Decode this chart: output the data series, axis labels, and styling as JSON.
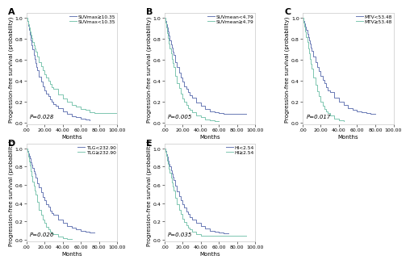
{
  "panels": [
    {
      "label": "A",
      "pvalue": "P=0.028",
      "legend": [
        "SUVmax≥10.35",
        "SUVmax<10.35"
      ],
      "colors": [
        "#6a7ab5",
        "#7dc6b0"
      ],
      "xlabel": "Months",
      "ylabel": "Progression-free survival (probability)",
      "xlim": [
        0,
        100
      ],
      "ylim": [
        -0.02,
        1.05
      ],
      "xticks": [
        0,
        20,
        40,
        60,
        80,
        100
      ],
      "xtick_labels": [
        ".00",
        "20.00",
        "40.00",
        "60.00",
        "80.00",
        "100.00"
      ],
      "yticks": [
        0.0,
        0.2,
        0.4,
        0.6,
        0.8,
        1.0
      ],
      "ytick_labels": [
        "0.0",
        "0.2",
        "0.4",
        "0.6",
        "0.8",
        "1.0"
      ],
      "curve1_x": [
        0,
        1,
        2,
        3,
        4,
        5,
        6,
        7,
        8,
        9,
        10,
        11,
        12,
        14,
        16,
        18,
        20,
        22,
        24,
        26,
        28,
        30,
        32,
        35,
        40,
        45,
        50,
        55,
        60,
        65,
        70
      ],
      "curve1_y": [
        1.0,
        0.97,
        0.93,
        0.89,
        0.84,
        0.79,
        0.74,
        0.7,
        0.65,
        0.61,
        0.57,
        0.53,
        0.5,
        0.44,
        0.39,
        0.35,
        0.31,
        0.28,
        0.25,
        0.22,
        0.2,
        0.18,
        0.16,
        0.14,
        0.11,
        0.08,
        0.06,
        0.05,
        0.04,
        0.03,
        0.02
      ],
      "curve2_x": [
        0,
        1,
        2,
        3,
        4,
        5,
        6,
        7,
        8,
        9,
        10,
        12,
        14,
        16,
        18,
        20,
        22,
        24,
        26,
        28,
        30,
        35,
        40,
        45,
        50,
        55,
        60,
        65,
        70,
        75,
        80,
        85,
        90,
        95,
        100
      ],
      "curve2_y": [
        1.0,
        0.97,
        0.94,
        0.91,
        0.87,
        0.84,
        0.81,
        0.77,
        0.74,
        0.71,
        0.68,
        0.63,
        0.58,
        0.54,
        0.5,
        0.46,
        0.43,
        0.4,
        0.37,
        0.34,
        0.32,
        0.27,
        0.23,
        0.2,
        0.17,
        0.15,
        0.13,
        0.12,
        0.1,
        0.09,
        0.09,
        0.09,
        0.09,
        0.09,
        0.09
      ]
    },
    {
      "label": "B",
      "pvalue": "P=0.005",
      "legend": [
        "SUVmean<4.79",
        "SUVmean≥4.79"
      ],
      "colors": [
        "#6a7ab5",
        "#7dc6b0"
      ],
      "xlabel": "Months",
      "ylabel": "Progression-free survival (probability)",
      "xlim": [
        0,
        100
      ],
      "ylim": [
        -0.02,
        1.05
      ],
      "xticks": [
        0,
        20,
        40,
        60,
        80,
        100
      ],
      "xtick_labels": [
        ".00",
        "20.00",
        "40.00",
        "60.00",
        "80.00",
        "100.00"
      ],
      "yticks": [
        0.0,
        0.2,
        0.4,
        0.6,
        0.8,
        1.0
      ],
      "ytick_labels": [
        "0.0",
        "0.2",
        "0.4",
        "0.6",
        "0.8",
        "1.0"
      ],
      "curve1_x": [
        0,
        1,
        2,
        3,
        4,
        5,
        6,
        7,
        8,
        9,
        10,
        12,
        14,
        16,
        18,
        20,
        22,
        24,
        26,
        28,
        30,
        35,
        40,
        45,
        50,
        55,
        60,
        65,
        70,
        75,
        80,
        85,
        90
      ],
      "curve1_y": [
        1.0,
        0.97,
        0.94,
        0.91,
        0.87,
        0.83,
        0.79,
        0.75,
        0.72,
        0.68,
        0.65,
        0.58,
        0.53,
        0.48,
        0.43,
        0.39,
        0.35,
        0.32,
        0.29,
        0.26,
        0.24,
        0.19,
        0.16,
        0.13,
        0.11,
        0.1,
        0.09,
        0.08,
        0.08,
        0.08,
        0.08,
        0.08,
        0.08
      ],
      "curve2_x": [
        0,
        1,
        2,
        3,
        4,
        5,
        6,
        7,
        8,
        9,
        10,
        12,
        14,
        16,
        18,
        20,
        22,
        24,
        26,
        28,
        30,
        35,
        40,
        45,
        50,
        55,
        60
      ],
      "curve2_y": [
        1.0,
        0.96,
        0.91,
        0.86,
        0.81,
        0.76,
        0.71,
        0.66,
        0.61,
        0.57,
        0.53,
        0.45,
        0.38,
        0.33,
        0.28,
        0.23,
        0.2,
        0.17,
        0.14,
        0.12,
        0.1,
        0.07,
        0.05,
        0.03,
        0.02,
        0.015,
        0.01
      ]
    },
    {
      "label": "C",
      "pvalue": "P=0.017",
      "legend": [
        "MTV<53.48",
        "MTV≥53.48"
      ],
      "colors": [
        "#6a7ab5",
        "#7dc6b0"
      ],
      "xlabel": "Months",
      "ylabel": "Progression-free survival (probability)",
      "xlim": [
        0,
        100
      ],
      "ylim": [
        -0.02,
        1.05
      ],
      "xticks": [
        0,
        20,
        40,
        60,
        80,
        100
      ],
      "xtick_labels": [
        ".00",
        "20.00",
        "40.00",
        "60.00",
        "80.00",
        "100.00"
      ],
      "yticks": [
        0.0,
        0.2,
        0.4,
        0.6,
        0.8,
        1.0
      ],
      "ytick_labels": [
        "0.0",
        "0.2",
        "0.4",
        "0.6",
        "0.8",
        "1.0"
      ],
      "curve1_x": [
        0,
        1,
        2,
        3,
        4,
        5,
        6,
        7,
        8,
        9,
        10,
        12,
        14,
        16,
        18,
        20,
        22,
        24,
        26,
        28,
        30,
        35,
        40,
        45,
        50,
        55,
        60,
        65,
        70,
        75,
        80
      ],
      "curve1_y": [
        1.0,
        0.97,
        0.95,
        0.92,
        0.89,
        0.85,
        0.82,
        0.79,
        0.76,
        0.72,
        0.69,
        0.63,
        0.58,
        0.53,
        0.49,
        0.45,
        0.41,
        0.38,
        0.34,
        0.31,
        0.29,
        0.24,
        0.2,
        0.17,
        0.14,
        0.12,
        0.11,
        0.1,
        0.09,
        0.08,
        0.08
      ],
      "curve2_x": [
        0,
        1,
        2,
        3,
        4,
        5,
        6,
        7,
        8,
        9,
        10,
        12,
        14,
        16,
        18,
        20,
        22,
        24,
        26,
        28,
        30,
        35,
        40,
        45
      ],
      "curve2_y": [
        1.0,
        0.96,
        0.92,
        0.87,
        0.82,
        0.77,
        0.71,
        0.66,
        0.61,
        0.56,
        0.52,
        0.43,
        0.36,
        0.3,
        0.25,
        0.2,
        0.16,
        0.13,
        0.11,
        0.09,
        0.07,
        0.04,
        0.02,
        0.01
      ]
    },
    {
      "label": "D",
      "pvalue": "P=0.026",
      "legend": [
        "TLG<232.90",
        "TLG≥232.90"
      ],
      "colors": [
        "#6a7ab5",
        "#7dc6b0"
      ],
      "xlabel": "Months",
      "ylabel": "Progression-free survival (probability)",
      "xlim": [
        0,
        100
      ],
      "ylim": [
        -0.02,
        1.05
      ],
      "xticks": [
        0,
        20,
        40,
        60,
        80,
        100
      ],
      "xtick_labels": [
        ".00",
        "20.00",
        "40.00",
        "60.00",
        "80.00",
        "100.00"
      ],
      "yticks": [
        0.0,
        0.2,
        0.4,
        0.6,
        0.8,
        1.0
      ],
      "ytick_labels": [
        "0.0",
        "0.2",
        "0.4",
        "0.6",
        "0.8",
        "1.0"
      ],
      "curve1_x": [
        0,
        1,
        2,
        3,
        4,
        5,
        6,
        7,
        8,
        9,
        10,
        12,
        14,
        16,
        18,
        20,
        22,
        24,
        26,
        28,
        30,
        35,
        40,
        45,
        50,
        55,
        60,
        65,
        70,
        75
      ],
      "curve1_y": [
        1.0,
        0.97,
        0.95,
        0.92,
        0.89,
        0.85,
        0.82,
        0.79,
        0.75,
        0.72,
        0.68,
        0.62,
        0.57,
        0.52,
        0.47,
        0.43,
        0.39,
        0.36,
        0.32,
        0.29,
        0.27,
        0.22,
        0.18,
        0.15,
        0.13,
        0.11,
        0.1,
        0.09,
        0.08,
        0.08
      ],
      "curve2_x": [
        0,
        1,
        2,
        3,
        4,
        5,
        6,
        7,
        8,
        9,
        10,
        12,
        14,
        16,
        18,
        20,
        22,
        24,
        26,
        28,
        30,
        35,
        40,
        45,
        50
      ],
      "curve2_y": [
        1.0,
        0.96,
        0.91,
        0.86,
        0.81,
        0.75,
        0.7,
        0.64,
        0.59,
        0.54,
        0.49,
        0.41,
        0.33,
        0.27,
        0.22,
        0.18,
        0.14,
        0.11,
        0.09,
        0.07,
        0.06,
        0.03,
        0.02,
        0.01,
        0.01
      ]
    },
    {
      "label": "E",
      "pvalue": "P=0.035",
      "legend": [
        "HI<2.54",
        "HI≥2.54"
      ],
      "colors": [
        "#6a7ab5",
        "#7dc6b0"
      ],
      "xlabel": "Months",
      "ylabel": "Progression-free survival (probability)",
      "xlim": [
        0,
        100
      ],
      "ylim": [
        -0.02,
        1.05
      ],
      "xticks": [
        0,
        20,
        40,
        60,
        80,
        100
      ],
      "xtick_labels": [
        ".00",
        "20.00",
        "40.00",
        "60.00",
        "80.00",
        "100.00"
      ],
      "yticks": [
        0.0,
        0.2,
        0.4,
        0.6,
        0.8,
        1.0
      ],
      "ytick_labels": [
        "0.0",
        "0.2",
        "0.4",
        "0.6",
        "0.8",
        "1.0"
      ],
      "curve1_x": [
        0,
        1,
        2,
        3,
        4,
        5,
        6,
        7,
        8,
        9,
        10,
        12,
        14,
        16,
        18,
        20,
        22,
        24,
        26,
        28,
        30,
        35,
        40,
        45,
        50,
        55,
        60,
        65,
        70
      ],
      "curve1_y": [
        1.0,
        0.97,
        0.94,
        0.91,
        0.87,
        0.83,
        0.8,
        0.76,
        0.72,
        0.69,
        0.65,
        0.59,
        0.53,
        0.48,
        0.43,
        0.39,
        0.35,
        0.31,
        0.28,
        0.25,
        0.22,
        0.18,
        0.15,
        0.12,
        0.1,
        0.09,
        0.08,
        0.07,
        0.07
      ],
      "curve2_x": [
        0,
        1,
        2,
        3,
        4,
        5,
        6,
        7,
        8,
        9,
        10,
        12,
        14,
        16,
        18,
        20,
        22,
        24,
        26,
        28,
        30,
        35,
        40,
        45,
        50,
        55,
        60,
        65,
        70,
        75,
        80,
        85,
        90
      ],
      "curve2_y": [
        1.0,
        0.96,
        0.92,
        0.87,
        0.83,
        0.78,
        0.73,
        0.68,
        0.63,
        0.58,
        0.54,
        0.46,
        0.39,
        0.33,
        0.28,
        0.23,
        0.19,
        0.16,
        0.13,
        0.11,
        0.09,
        0.06,
        0.04,
        0.04,
        0.04,
        0.04,
        0.04,
        0.04,
        0.04,
        0.04,
        0.04,
        0.04,
        0.04
      ]
    }
  ],
  "bg_color": "#ffffff",
  "spine_color": "#bbbbbb",
  "tick_fontsize": 4.5,
  "label_fontsize": 5.0,
  "legend_fontsize": 4.2,
  "pvalue_fontsize": 5.0,
  "panel_label_fontsize": 8,
  "linewidth": 0.7
}
